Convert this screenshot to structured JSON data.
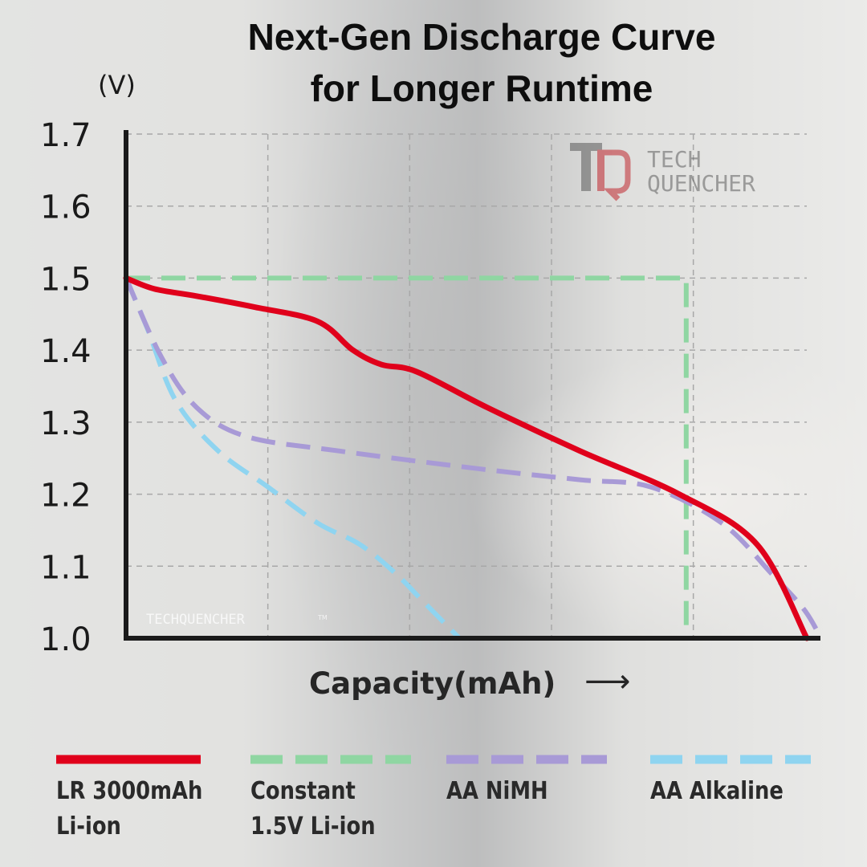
{
  "title": {
    "line1": "Next-Gen Discharge Curve",
    "line2": "for Longer Runtime"
  },
  "watermark": {
    "logo_text_1": "TECH",
    "logo_text_2": "QUENCHER",
    "small": "TECHQUENCHER",
    "tm": "TM"
  },
  "colors": {
    "li_ion": "#e0001b",
    "constant": "#8fd6a2",
    "nimh": "#a89ad6",
    "alkaline": "#8fd4f0"
  },
  "chart_data": {
    "type": "line",
    "title": "Next-Gen Discharge Curve for Longer Runtime",
    "ylabel": "(V)",
    "xlabel": "Capacity(mAh)",
    "xlabel_arrow": "⟶",
    "ylim": [
      1.0,
      1.7
    ],
    "xlim": [
      0,
      4.8
    ],
    "yticks": [
      "1.7",
      "1.6",
      "1.5",
      "1.4",
      "1.3",
      "1.2",
      "1.1",
      "1.0"
    ],
    "ytick_values": [
      1.7,
      1.6,
      1.5,
      1.4,
      1.3,
      1.2,
      1.1,
      1.0
    ],
    "xgrid": [
      1,
      2,
      3,
      4,
      5
    ],
    "grid": true,
    "series": [
      {
        "name": "LR 3000mAh Li-ion",
        "label_lines": [
          "LR 3000mAh",
          "Li-ion"
        ],
        "style": "solid",
        "x": [
          0,
          0.2,
          0.5,
          0.9,
          1.35,
          1.6,
          1.8,
          2.05,
          2.55,
          3.2,
          3.9,
          4.45,
          4.8
        ],
        "y": [
          1.5,
          1.485,
          1.475,
          1.46,
          1.44,
          1.4,
          1.38,
          1.37,
          1.32,
          1.26,
          1.2,
          1.13,
          1.0
        ]
      },
      {
        "name": "Constant 1.5V Li-ion",
        "label_lines": [
          "Constant",
          "1.5V Li-ion"
        ],
        "style": "dashed",
        "x": [
          0,
          3.95,
          3.95
        ],
        "y": [
          1.5,
          1.5,
          1.0
        ]
      },
      {
        "name": "AA NiMH",
        "label_lines": [
          "AA NiMH"
        ],
        "style": "dashed",
        "x": [
          0,
          0.25,
          0.5,
          0.85,
          1.5,
          2.5,
          3.2,
          3.7,
          4.2,
          4.55,
          4.78,
          4.9
        ],
        "y": [
          1.5,
          1.39,
          1.32,
          1.28,
          1.26,
          1.235,
          1.22,
          1.21,
          1.16,
          1.09,
          1.04,
          1.0
        ]
      },
      {
        "name": "AA Alkaline",
        "label_lines": [
          "AA Alkaline"
        ],
        "style": "dashed",
        "x": [
          0,
          0.15,
          0.35,
          0.65,
          1.0,
          1.35,
          1.65,
          1.9,
          2.1,
          2.35
        ],
        "y": [
          1.5,
          1.43,
          1.33,
          1.26,
          1.21,
          1.16,
          1.13,
          1.09,
          1.05,
          1.0
        ]
      }
    ],
    "legend_position": "bottom"
  }
}
